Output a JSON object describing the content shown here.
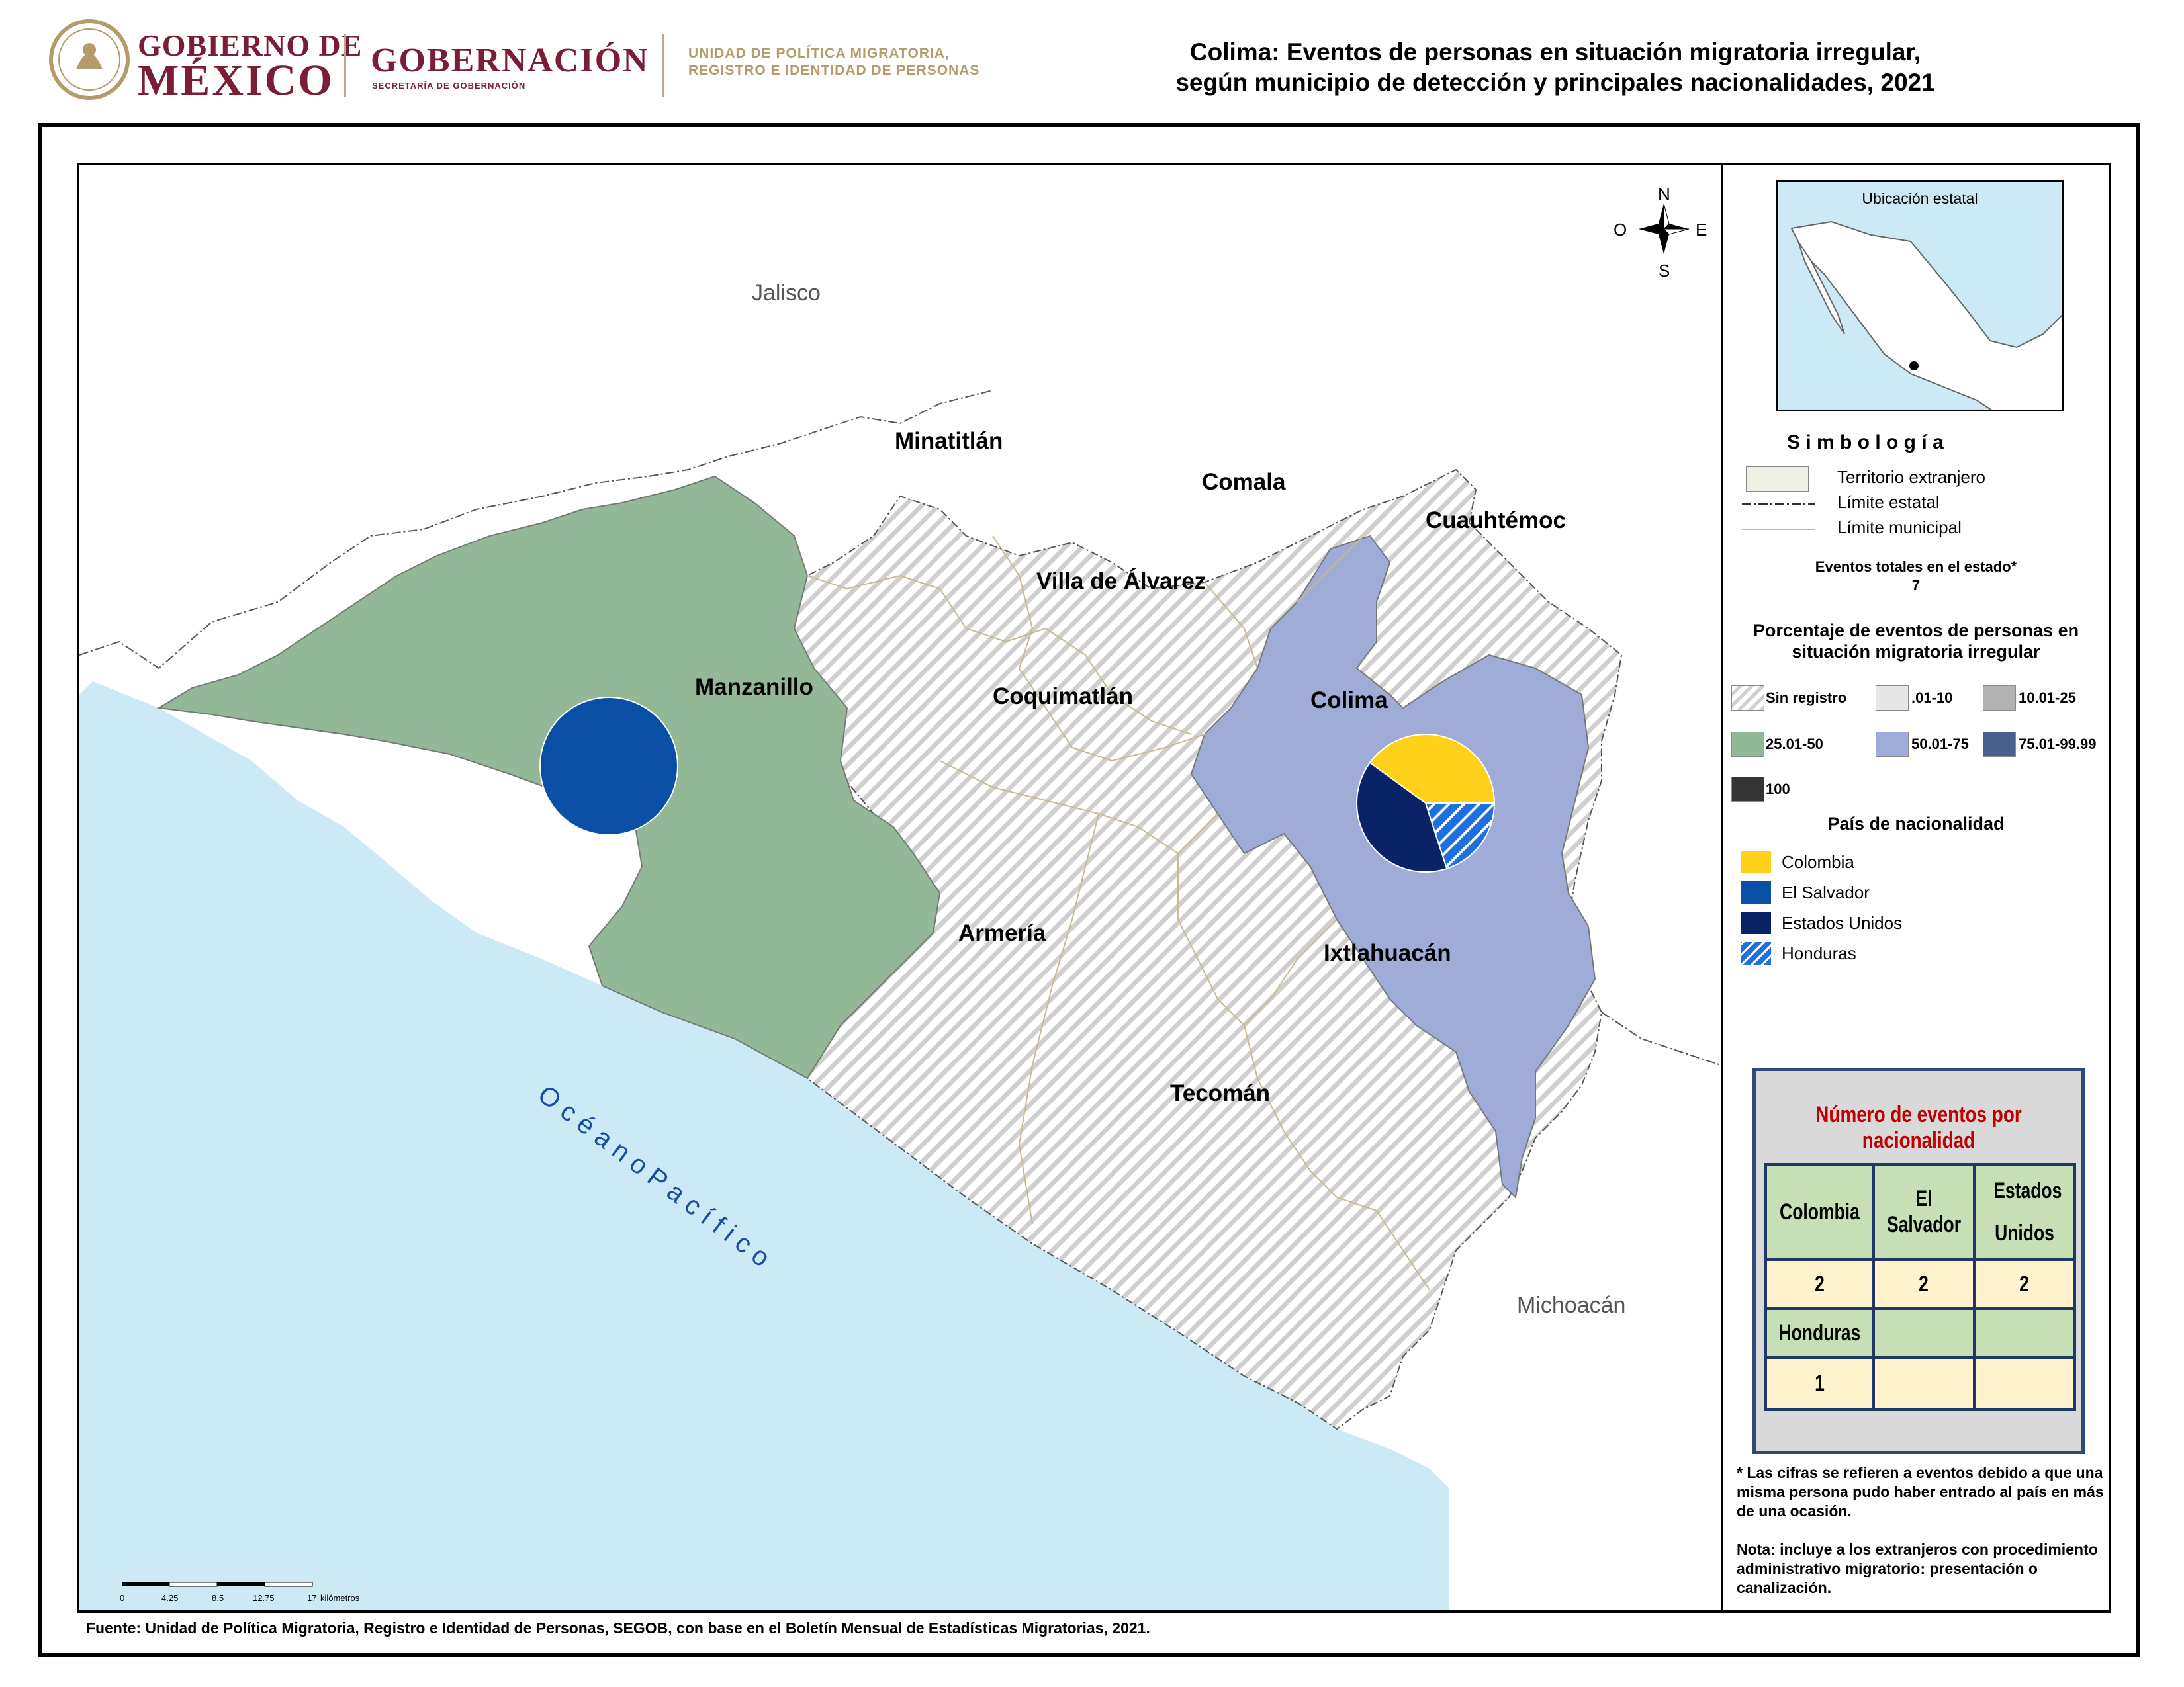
{
  "header": {
    "gob_line1": "GOBIERNO DE",
    "gob_line2": "MÉXICO",
    "gobernacion": "GOBERNACIÓN",
    "gobernacion_sub": "SECRETARÍA DE GOBERNACIÓN",
    "unidad_line1": "UNIDAD DE POLÍTICA MIGRATORIA,",
    "unidad_line2": "REGISTRO E IDENTIDAD DE PERSONAS",
    "title_line1": "Colima: Eventos de personas en situación migratoria irregular,",
    "title_line2": "según municipio de detección y principales nacionalidades, 2021"
  },
  "map": {
    "neighbors": {
      "north": "Jalisco",
      "east": "Michoacán"
    },
    "ocean": "O c é a n o   P a c í f i c o",
    "compass": {
      "n": "N",
      "s": "S",
      "e": "E",
      "w": "O"
    },
    "municipios": [
      "Minatitlán",
      "Comala",
      "Cuauhtémoc",
      "Villa de Álvarez",
      "Manzanillo",
      "Coquimatlán",
      "Colima",
      "Armería",
      "Ixtlahuacán",
      "Tecomán"
    ],
    "municipio_class": {
      "Manzanillo": "25.01-50",
      "Colima": "50.01-75",
      "Minatitlán": "Sin registro",
      "Comala": "Sin registro",
      "Cuauhtémoc": "Sin registro",
      "Villa de Álvarez": "Sin registro",
      "Coquimatlán": "Sin registro",
      "Armería": "Sin registro",
      "Ixtlahuacán": "Sin registro",
      "Tecomán": "Sin registro"
    },
    "scale": {
      "ticks": [
        "0",
        "4.25",
        "8.5",
        "12.75",
        "17"
      ],
      "unit": "kilómetros"
    }
  },
  "pies": [
    {
      "municipio": "Manzanillo",
      "slices": [
        {
          "pais": "El Salvador",
          "eventos": 2
        }
      ]
    },
    {
      "municipio": "Colima",
      "slices": [
        {
          "pais": "Colombia",
          "eventos": 2
        },
        {
          "pais": "Estados Unidos",
          "eventos": 2
        },
        {
          "pais": "Honduras",
          "eventos": 1
        }
      ]
    }
  ],
  "legend": {
    "inset_title": "Ubicación estatal",
    "simbologia": "S i m b o l o g í a",
    "sym": [
      "Territorio extranjero",
      "Límite estatal",
      "Límite municipal"
    ],
    "eventos_label": "Eventos totales en el estado*",
    "eventos_total": "7",
    "pct_title1": "Porcentaje de eventos de personas en",
    "pct_title2": "situación migratoria irregular",
    "classes": [
      {
        "label": "Sin registro",
        "color": "hatch"
      },
      {
        "label": ".01-10",
        "color": "#e6e6e6"
      },
      {
        "label": "10.01-25",
        "color": "#b2b2b2"
      },
      {
        "label": "25.01-50",
        "color": "#93b898"
      },
      {
        "label": "50.01-75",
        "color": "#a0acd8"
      },
      {
        "label": "75.01-99.99",
        "color": "#48618d"
      },
      {
        "label": "100",
        "color": "#343434"
      }
    ],
    "pais_title": "País de nacionalidad",
    "paises": [
      {
        "label": "Colombia",
        "color": "#ffd11a"
      },
      {
        "label": "El Salvador",
        "color": "#0a4fa6"
      },
      {
        "label": "Estados Unidos",
        "color": "#0a2366"
      },
      {
        "label": "Honduras",
        "color": "#1e6fe0"
      }
    ]
  },
  "table": {
    "title": "Número de eventos por nacionalidad",
    "headers": [
      "Colombia",
      "El Salvador",
      "Estados Unidos"
    ],
    "values": [
      "2",
      "2",
      "2"
    ],
    "headers2": [
      "Honduras",
      "",
      ""
    ],
    "values2": [
      "1",
      "",
      ""
    ]
  },
  "notes": {
    "note1": "* Las cifras se refieren a eventos debido a que una misma persona pudo haber entrado al país en más de una ocasión.",
    "note2": "Nota: incluye a los extranjeros con procedimiento administrativo migratorio: presentación o canalización."
  },
  "source": "Fuente: Unidad de Política Migratoria, Registro e Identidad de Personas, SEGOB, con base en el Boletín Mensual de Estadísticas Migratorias, 2021."
}
